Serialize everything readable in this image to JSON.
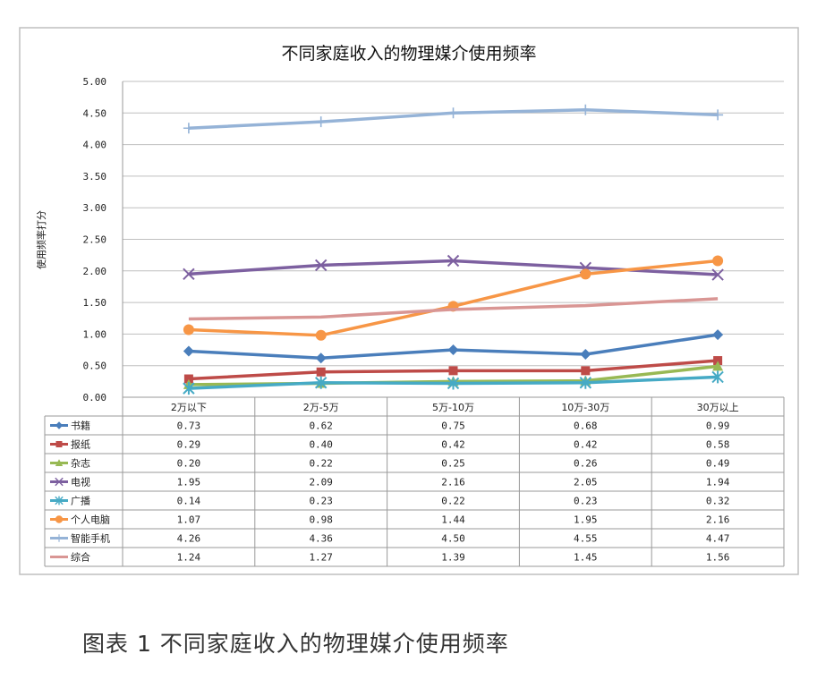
{
  "caption": "图表 1   不同家庭收入的物理媒介使用频率",
  "chart_data": {
    "type": "line",
    "title": "不同家庭收入的物理媒介使用频率",
    "ylabel": "使用频率打分",
    "xlabel": "",
    "ylim": [
      0,
      5
    ],
    "y_ticks": [
      "0.00",
      "0.50",
      "1.00",
      "1.50",
      "2.00",
      "2.50",
      "3.00",
      "3.50",
      "4.00",
      "4.50",
      "5.00"
    ],
    "grid": true,
    "legend": "data-table",
    "categories": [
      "2万以下",
      "2万-5万",
      "5万-10万",
      "10万-30万",
      "30万以上"
    ],
    "series": [
      {
        "name": "书籍",
        "values": [
          0.73,
          0.62,
          0.75,
          0.68,
          0.99
        ],
        "color": "#4a7ebb",
        "marker": "diamond"
      },
      {
        "name": "报纸",
        "values": [
          0.29,
          0.4,
          0.42,
          0.42,
          0.58
        ],
        "color": "#be4b48",
        "marker": "square"
      },
      {
        "name": "杂志",
        "values": [
          0.2,
          0.22,
          0.25,
          0.26,
          0.49
        ],
        "color": "#98b954",
        "marker": "triangle"
      },
      {
        "name": "电视",
        "values": [
          1.95,
          2.09,
          2.16,
          2.05,
          1.94
        ],
        "color": "#7d60a0",
        "marker": "x"
      },
      {
        "name": "广播",
        "values": [
          0.14,
          0.23,
          0.22,
          0.23,
          0.32
        ],
        "color": "#46aac5",
        "marker": "star"
      },
      {
        "name": "个人电脑",
        "values": [
          1.07,
          0.98,
          1.44,
          1.95,
          2.16
        ],
        "color": "#f79646",
        "marker": "circle"
      },
      {
        "name": "智能手机",
        "values": [
          4.26,
          4.36,
          4.5,
          4.55,
          4.47
        ],
        "color": "#95b3d7",
        "marker": "plus"
      },
      {
        "name": "综合",
        "values": [
          1.24,
          1.27,
          1.39,
          1.45,
          1.56
        ],
        "color": "#d99694",
        "marker": "none"
      }
    ],
    "table_values": [
      [
        "0.73",
        "0.62",
        "0.75",
        "0.68",
        "0.99"
      ],
      [
        "0.29",
        "0.40",
        "0.42",
        "0.42",
        "0.58"
      ],
      [
        "0.20",
        "0.22",
        "0.25",
        "0.26",
        "0.49"
      ],
      [
        "1.95",
        "2.09",
        "2.16",
        "2.05",
        "1.94"
      ],
      [
        "0.14",
        "0.23",
        "0.22",
        "0.23",
        "0.32"
      ],
      [
        "1.07",
        "0.98",
        "1.44",
        "1.95",
        "2.16"
      ],
      [
        "4.26",
        "4.36",
        "4.50",
        "4.55",
        "4.47"
      ],
      [
        "1.24",
        "1.27",
        "1.39",
        "1.45",
        "1.56"
      ]
    ]
  }
}
